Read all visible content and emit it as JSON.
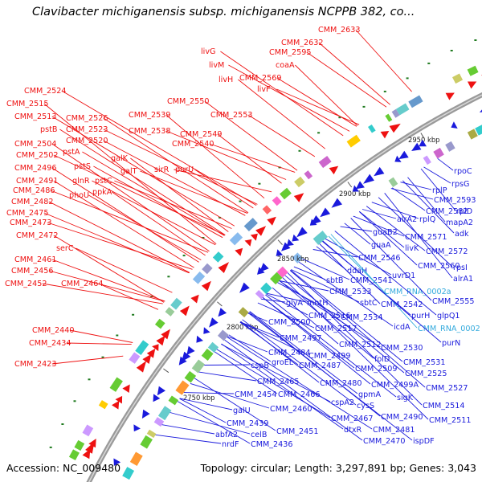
{
  "title": "Clavibacter michiganensis subsp. michiganensis NCPPB 382, co...",
  "footer": {
    "accession": "Accession: NC_009480",
    "topology": "Topology: circular; Length: 3,297,891 bp; Genes: 3,043"
  },
  "colors": {
    "forward_gene": "#ee1111",
    "reverse_gene": "#1a1adc",
    "rna_label": "#33aadd",
    "backbone": "#8c8c8c",
    "gc_tick": "#1f7a1f"
  },
  "ticks": [
    "2750 kbp",
    "2800 kbp",
    "2850 kbp",
    "2900 kbp",
    "2950 kbp"
  ],
  "forward_labels": [
    "CMM_2633",
    "CMM_2632",
    "CMM_2595",
    "livG",
    "livM",
    "coaA",
    "livH",
    "CMM_2569",
    "livF",
    "CMM_2524",
    "CMM_2515",
    "CMM_2550",
    "CMM_2526",
    "CMM_2513",
    "CMM_2523",
    "CMM_2539",
    "CMM_2553",
    "pstB",
    "CMM_2520",
    "CMM_2538",
    "CMM_2549",
    "CMM_2504",
    "pstA",
    "CMM_2540",
    "CMM_2502",
    "galK",
    "CMM_2496",
    "pstS",
    "galT",
    "sirR",
    "purU",
    "CMM_2491",
    "glnR",
    "pstC",
    "CMM_2486",
    "ppkA",
    "phoU",
    "CMM_2482",
    "CMM_2475",
    "CMM_2473",
    "CMM_2472",
    "serC",
    "CMM_2461",
    "CMM_2456",
    "CMM_2452",
    "CMM_2464",
    "CMM_2440",
    "CMM_2434",
    "CMM_2423"
  ],
  "reverse_labels": [
    "rpoC",
    "rpsG",
    "rplP",
    "CMM_2593",
    "rplD",
    "CMM_2582",
    "alrA2",
    "rplQ",
    "mapA2",
    "adk",
    "guaB2",
    "CMM_2571",
    "guaA",
    "livK",
    "CMM_2572",
    "CMM_2546",
    "ddaH",
    "CMM_2560",
    "rpsI",
    "uvrD1",
    "alrA1",
    "sbtB",
    "CMM_2541",
    "CMM_2533",
    "CMM_RNA_0002a",
    "glyA",
    "mntH",
    "sbtC",
    "CMM_2542",
    "CMM_2555",
    "purH",
    "glpQ1",
    "CMM_2500",
    "CMM_2516",
    "CMM_2534",
    "icdA",
    "CMM_RNA_0002",
    "CMM_2497",
    "CMM_2517",
    "purN",
    "CMM_2512",
    "CMM_2484",
    "CMM_2499",
    "CMM_2530",
    "groEL",
    "folD",
    "CMM_2531",
    "cspB",
    "CMM_2487",
    "CMM_2509",
    "CMM_2525",
    "CMM_2465",
    "CMM_2480",
    "CMM_2499A",
    "CMM_2527",
    "CMM_2454",
    "CMM_2466",
    "gpmA",
    "sigK",
    "cspA2",
    "CMM_2514",
    "cysS",
    "galU",
    "CMM_2460",
    "CMM_2511",
    "CMM_2490",
    "CMM_2467",
    "CMM_2481",
    "CMM_2439",
    "dtxR",
    "abfA2",
    "celB",
    "CMM_2451",
    "CMM_2470",
    "ispDF",
    "nrdF",
    "CMM_2436"
  ]
}
